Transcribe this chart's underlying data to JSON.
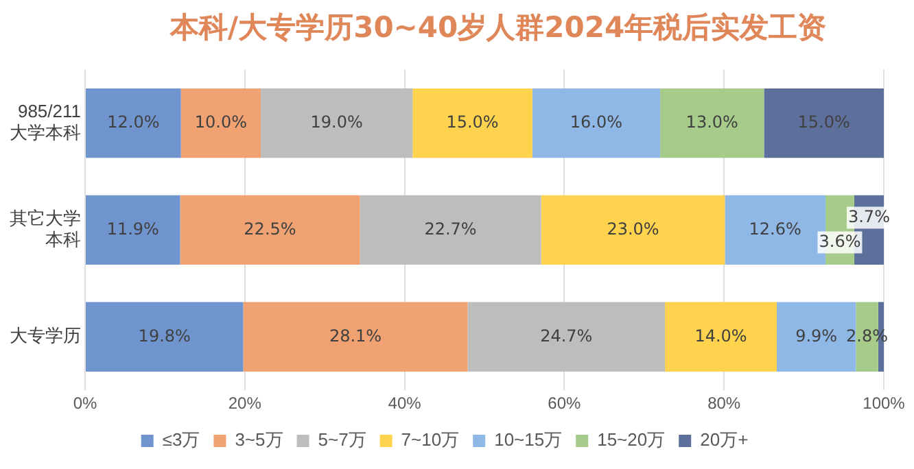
{
  "chart_data": {
    "type": "bar",
    "orientation": "horizontal",
    "stacked": true,
    "title": "本科/大专学历30~40岁人群2024年税后实发工资",
    "categories": [
      "985/211大学本科",
      "其它大学本科",
      "大专学历"
    ],
    "xlim": [
      0,
      100
    ],
    "xticks": [
      {
        "value": 0,
        "label": "0%"
      },
      {
        "value": 20,
        "label": "20%"
      },
      {
        "value": 40,
        "label": "40%"
      },
      {
        "value": 60,
        "label": "60%"
      },
      {
        "value": 80,
        "label": "80%"
      },
      {
        "value": 100,
        "label": "100%"
      }
    ],
    "grid": "x",
    "legend": "bottom",
    "series": [
      {
        "name": "≤3万",
        "color": "#7094cd",
        "values": [
          12.0,
          11.9,
          19.8
        ],
        "value_labels": [
          "12.0%",
          "11.9%",
          "19.8%"
        ]
      },
      {
        "name": "3~5万",
        "color": "#f0a272",
        "values": [
          10.0,
          22.5,
          28.1
        ],
        "value_labels": [
          "10.0%",
          "22.5%",
          "28.1%"
        ]
      },
      {
        "name": "5~7万",
        "color": "#bdbdbd",
        "values": [
          19.0,
          22.7,
          24.7
        ],
        "value_labels": [
          "19.0%",
          "22.7%",
          "24.7%"
        ]
      },
      {
        "name": "7~10万",
        "color": "#ffd34d",
        "values": [
          15.0,
          23.0,
          14.0
        ],
        "value_labels": [
          "15.0%",
          "23.0%",
          "14.0%"
        ]
      },
      {
        "name": "10~15万",
        "color": "#8fb8e6",
        "values": [
          16.0,
          12.6,
          9.9
        ],
        "value_labels": [
          "16.0%",
          "12.6%",
          "9.9%"
        ]
      },
      {
        "name": "15~20万",
        "color": "#a6cb8a",
        "values": [
          13.0,
          3.6,
          2.8
        ],
        "value_labels": [
          "13.0%",
          "3.6%",
          "2.8%"
        ]
      },
      {
        "name": "20万+",
        "color": "#5d6f9b",
        "values": [
          15.0,
          3.7,
          0.7
        ],
        "value_labels": [
          "15.0%",
          "3.7%",
          null
        ]
      }
    ]
  }
}
